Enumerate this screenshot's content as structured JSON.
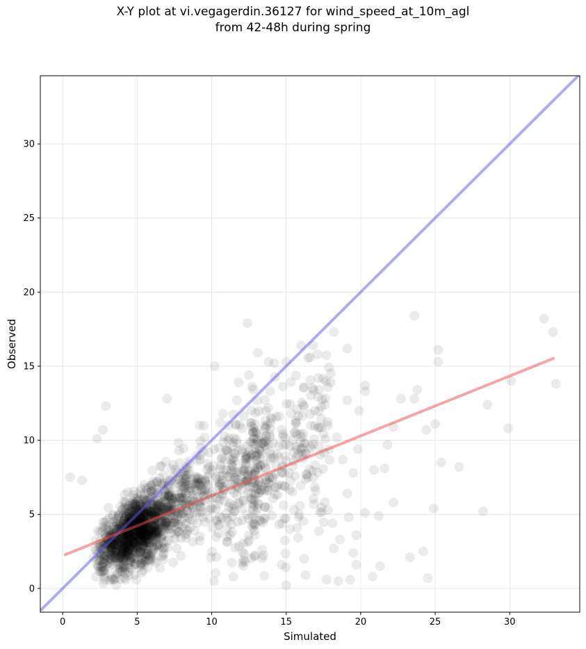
{
  "chart_data": {
    "type": "scatter",
    "title": [
      "X-Y plot at vi.vegagerdin.36127 for wind_speed_at_10m_agl",
      "from 42-48h during spring"
    ],
    "xlabel": "Simulated",
    "ylabel": "Observed",
    "xlim": [
      -1.5,
      34.7
    ],
    "ylim": [
      -1.6,
      34.6
    ],
    "xticks": [
      0,
      5,
      10,
      15,
      20,
      25,
      30
    ],
    "yticks": [
      0,
      5,
      10,
      15,
      20,
      25,
      30
    ],
    "grid": true,
    "point_color": "#000000",
    "point_opacity": 0.08,
    "series": [
      {
        "values": [
          [
            12.4,
            17.9
          ],
          [
            16.8,
            16.4
          ],
          [
            16.0,
            16.4
          ],
          [
            18.2,
            17.3
          ],
          [
            19.1,
            16.2
          ],
          [
            23.6,
            18.4
          ],
          [
            32.3,
            18.2
          ],
          [
            32.9,
            17.3
          ],
          [
            25.2,
            16.1
          ],
          [
            25.2,
            15.3
          ],
          [
            33.1,
            13.8
          ],
          [
            30.1,
            14.0
          ],
          [
            28.5,
            12.4
          ],
          [
            26.6,
            8.2
          ],
          [
            25.4,
            8.5
          ],
          [
            25.0,
            11.1
          ],
          [
            29.9,
            10.8
          ],
          [
            28.2,
            5.2
          ],
          [
            24.4,
            10.7
          ],
          [
            23.8,
            13.4
          ],
          [
            23.6,
            12.8
          ],
          [
            22.7,
            12.8
          ],
          [
            22.2,
            10.9
          ],
          [
            22.2,
            5.8
          ],
          [
            21.8,
            9.7
          ],
          [
            21.6,
            8.1
          ],
          [
            20.9,
            8.0
          ],
          [
            21.2,
            4.9
          ],
          [
            20.3,
            13.7
          ],
          [
            20.3,
            13.3
          ],
          [
            19.9,
            12.0
          ],
          [
            19.1,
            12.7
          ],
          [
            19.8,
            9.4
          ],
          [
            20.3,
            5.1
          ],
          [
            24.9,
            5.4
          ],
          [
            24.2,
            2.5
          ],
          [
            24.5,
            0.7
          ],
          [
            23.3,
            2.1
          ],
          [
            21.3,
            1.5
          ],
          [
            20.8,
            0.8
          ],
          [
            15.0,
            0.2
          ],
          [
            14.7,
            1.6
          ],
          [
            16.3,
            0.9
          ],
          [
            17.7,
            0.6
          ],
          [
            18.5,
            0.5
          ],
          [
            19.3,
            0.6
          ],
          [
            19.7,
            1.6
          ],
          [
            18.2,
            2.7
          ],
          [
            15.0,
            15.3
          ],
          [
            14.2,
            15.2
          ],
          [
            13.1,
            15.9
          ],
          [
            12.5,
            14.4
          ],
          [
            11.8,
            13.9
          ],
          [
            10.2,
            15.0
          ],
          [
            7.0,
            12.8
          ],
          [
            2.9,
            12.3
          ],
          [
            2.7,
            10.7
          ],
          [
            2.3,
            10.1
          ],
          [
            0.5,
            7.5
          ],
          [
            1.3,
            7.3
          ],
          [
            17.1,
            15.8
          ],
          [
            16.6,
            15.6
          ],
          [
            18.4,
            10.2
          ],
          [
            17.2,
            13.4
          ],
          [
            18.8,
            8.7
          ],
          [
            19.1,
            6.4
          ],
          [
            19.5,
            7.8
          ],
          [
            17.8,
            5.3
          ],
          [
            19.2,
            4.8
          ],
          [
            19.7,
            3.6
          ],
          [
            18.6,
            3.3
          ],
          [
            19.5,
            2.4
          ],
          [
            18.1,
            4.4
          ]
        ]
      }
    ],
    "reference_lines": [
      {
        "name": "1:1",
        "color": "#5a5aee",
        "opacity": 0.5,
        "from": [
          -1.5,
          -1.5
        ],
        "to": [
          34.7,
          34.7
        ]
      },
      {
        "name": "fit",
        "color": "#f24a4a",
        "opacity": 0.5,
        "from": [
          0.1,
          2.25
        ],
        "to": [
          33.0,
          15.55
        ]
      }
    ]
  }
}
